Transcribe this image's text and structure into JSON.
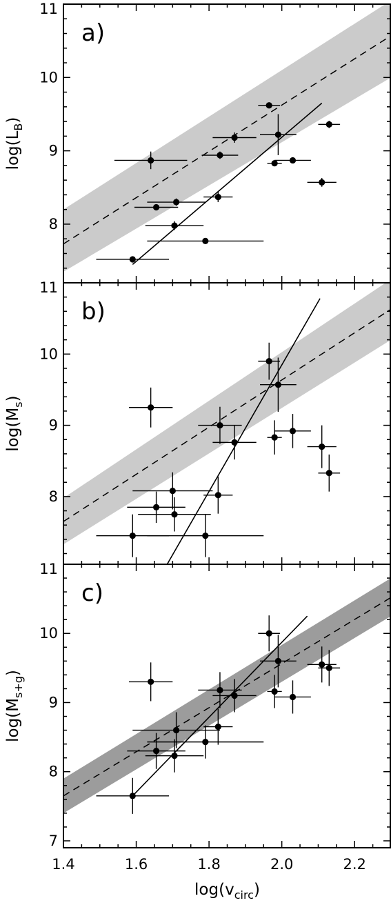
{
  "chart_data": [
    {
      "type": "scatter",
      "panel_label": "a)",
      "ylabel": "log(L",
      "ylabel_sub": "B",
      "ylabel_tail": ")",
      "xlim": [
        1.4,
        2.3
      ],
      "ylim": [
        7.2,
        11.0
      ],
      "y_ticks": [
        "11",
        "10",
        "9",
        "8"
      ],
      "band_color": "#cbcbcb",
      "band": {
        "x": [
          1.4,
          2.3
        ],
        "y_upper": [
          8.2,
          11.05
        ],
        "y_lower": [
          7.35,
          10.0
        ]
      },
      "dashed_line": {
        "x": [
          1.4,
          2.3
        ],
        "y": [
          7.73,
          10.57
        ]
      },
      "solid_line": {
        "x": [
          1.59,
          2.11
        ],
        "y": [
          7.45,
          9.65
        ]
      },
      "points": [
        {
          "x": 1.59,
          "y": 7.52,
          "xerr": 0.1,
          "yerr": 0.04
        },
        {
          "x": 1.64,
          "y": 8.87,
          "xerr": 0.1,
          "yerr": 0.12
        },
        {
          "x": 1.655,
          "y": 8.23,
          "xerr": 0.06,
          "yerr": 0.04
        },
        {
          "x": 1.705,
          "y": 7.98,
          "xerr": 0.08,
          "yerr": 0.06
        },
        {
          "x": 1.71,
          "y": 8.3,
          "xerr": 0.08,
          "yerr": 0.05
        },
        {
          "x": 1.79,
          "y": 7.77,
          "xerr": 0.16,
          "yerr": 0.03
        },
        {
          "x": 1.825,
          "y": 8.37,
          "xerr": 0.04,
          "yerr": 0.07
        },
        {
          "x": 1.83,
          "y": 8.94,
          "xerr": 0.05,
          "yerr": 0.05
        },
        {
          "x": 1.87,
          "y": 9.18,
          "xerr": 0.06,
          "yerr": 0.07
        },
        {
          "x": 1.965,
          "y": 9.62,
          "xerr": 0.03,
          "yerr": 0.04
        },
        {
          "x": 1.98,
          "y": 8.83,
          "xerr": 0.02,
          "yerr": 0.04
        },
        {
          "x": 1.99,
          "y": 9.22,
          "xerr": 0.05,
          "yerr": 0.28
        },
        {
          "x": 2.03,
          "y": 8.87,
          "xerr": 0.05,
          "yerr": 0.03
        },
        {
          "x": 2.11,
          "y": 8.57,
          "xerr": 0.04,
          "yerr": 0.06
        },
        {
          "x": 2.13,
          "y": 9.36,
          "xerr": 0.03,
          "yerr": 0.05
        }
      ]
    },
    {
      "type": "scatter",
      "panel_label": "b)",
      "ylabel": "log(M",
      "ylabel_sub": "s",
      "ylabel_tail": ")",
      "xlim": [
        1.4,
        2.3
      ],
      "ylim": [
        7.05,
        11.0
      ],
      "y_ticks": [
        "11",
        "10",
        "9",
        "8"
      ],
      "band_color": "#cbcbcb",
      "band": {
        "x": [
          1.4,
          2.3
        ],
        "y_upper": [
          7.98,
          11.05
        ],
        "y_lower": [
          7.33,
          10.2
        ]
      },
      "dashed_line": {
        "x": [
          1.4,
          2.3
        ],
        "y": [
          7.65,
          10.63
        ]
      },
      "solid_line": {
        "x": [
          1.685,
          2.105
        ],
        "y": [
          7.05,
          10.78
        ]
      },
      "points": [
        {
          "x": 1.59,
          "y": 7.45,
          "xerr": 0.1,
          "yerr": 0.3
        },
        {
          "x": 1.64,
          "y": 9.25,
          "xerr": 0.06,
          "yerr": 0.28
        },
        {
          "x": 1.655,
          "y": 7.85,
          "xerr": 0.08,
          "yerr": 0.22
        },
        {
          "x": 1.7,
          "y": 8.08,
          "xerr": 0.11,
          "yerr": 0.26
        },
        {
          "x": 1.705,
          "y": 7.75,
          "xerr": 0.1,
          "yerr": 0.24
        },
        {
          "x": 1.79,
          "y": 7.45,
          "xerr": 0.16,
          "yerr": 0.3
        },
        {
          "x": 1.825,
          "y": 8.02,
          "xerr": 0.04,
          "yerr": 0.26
        },
        {
          "x": 1.83,
          "y": 9.0,
          "xerr": 0.06,
          "yerr": 0.26
        },
        {
          "x": 1.87,
          "y": 8.76,
          "xerr": 0.06,
          "yerr": 0.24
        },
        {
          "x": 1.965,
          "y": 9.9,
          "xerr": 0.03,
          "yerr": 0.26
        },
        {
          "x": 1.98,
          "y": 8.83,
          "xerr": 0.02,
          "yerr": 0.24
        },
        {
          "x": 1.99,
          "y": 9.57,
          "xerr": 0.05,
          "yerr": 0.38
        },
        {
          "x": 2.03,
          "y": 8.92,
          "xerr": 0.05,
          "yerr": 0.24
        },
        {
          "x": 2.11,
          "y": 8.7,
          "xerr": 0.04,
          "yerr": 0.3
        },
        {
          "x": 2.13,
          "y": 8.33,
          "xerr": 0.03,
          "yerr": 0.26
        }
      ]
    },
    {
      "type": "scatter",
      "panel_label": "c)",
      "ylabel": "log(M",
      "ylabel_sub": "s+g",
      "ylabel_tail": ")",
      "xlim": [
        1.4,
        2.3
      ],
      "ylim": [
        6.9,
        11.0
      ],
      "y_ticks": [
        "11",
        "10",
        "9",
        "8",
        "7"
      ],
      "x_ticks": [
        "1.4",
        "1.6",
        "1.8",
        "2.0",
        "2.2"
      ],
      "xlabel": "log(v",
      "xlabel_sub": "circ",
      "xlabel_tail": ")",
      "band_color": "#9c9c9c",
      "band": {
        "x": [
          1.4,
          2.3
        ],
        "y_upper": [
          7.9,
          10.8
        ],
        "y_lower": [
          7.4,
          10.25
        ]
      },
      "dashed_line": {
        "x": [
          1.4,
          2.3
        ],
        "y": [
          7.65,
          10.52
        ]
      },
      "solid_line": {
        "x": [
          1.59,
          2.07
        ],
        "y": [
          7.65,
          10.25
        ]
      },
      "points": [
        {
          "x": 1.59,
          "y": 7.65,
          "xerr": 0.1,
          "yerr": 0.26
        },
        {
          "x": 1.64,
          "y": 9.3,
          "xerr": 0.06,
          "yerr": 0.28
        },
        {
          "x": 1.655,
          "y": 8.3,
          "xerr": 0.08,
          "yerr": 0.26
        },
        {
          "x": 1.705,
          "y": 8.23,
          "xerr": 0.08,
          "yerr": 0.24
        },
        {
          "x": 1.71,
          "y": 8.6,
          "xerr": 0.12,
          "yerr": 0.26
        },
        {
          "x": 1.79,
          "y": 8.43,
          "xerr": 0.16,
          "yerr": 0.24
        },
        {
          "x": 1.825,
          "y": 8.65,
          "xerr": 0.04,
          "yerr": 0.26
        },
        {
          "x": 1.83,
          "y": 9.18,
          "xerr": 0.06,
          "yerr": 0.26
        },
        {
          "x": 1.87,
          "y": 9.1,
          "xerr": 0.06,
          "yerr": 0.24
        },
        {
          "x": 1.965,
          "y": 10.0,
          "xerr": 0.03,
          "yerr": 0.26
        },
        {
          "x": 1.98,
          "y": 9.16,
          "xerr": 0.02,
          "yerr": 0.24
        },
        {
          "x": 1.99,
          "y": 9.6,
          "xerr": 0.05,
          "yerr": 0.38
        },
        {
          "x": 2.03,
          "y": 9.08,
          "xerr": 0.05,
          "yerr": 0.24
        },
        {
          "x": 2.11,
          "y": 9.55,
          "xerr": 0.04,
          "yerr": 0.26
        },
        {
          "x": 2.13,
          "y": 9.5,
          "xerr": 0.03,
          "yerr": 0.26
        }
      ]
    }
  ]
}
